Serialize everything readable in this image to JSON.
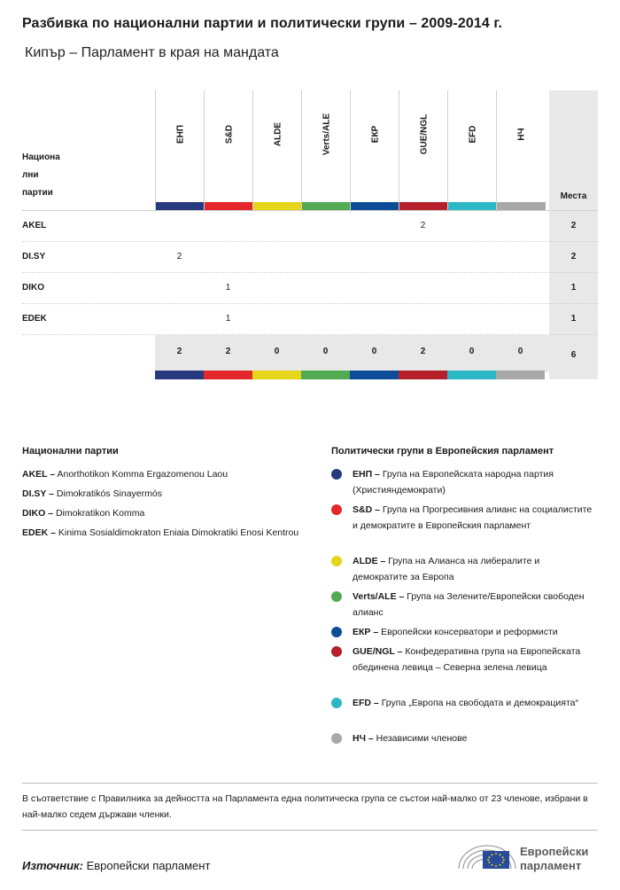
{
  "title": "Разбивка по национални партии и политически групи – 2009-2014 г.",
  "subtitle": "Кипър – Парламент в края на мандата",
  "table": {
    "row_header": [
      "Национа",
      "лни",
      "партии"
    ],
    "seats_header": "Места",
    "groups": [
      {
        "name": "ЕНП",
        "color": "#273a7f"
      },
      {
        "name": "S&D",
        "color": "#e3272b"
      },
      {
        "name": "ALDE",
        "color": "#e6d51a"
      },
      {
        "name": "Verts/ALE",
        "color": "#52ab53"
      },
      {
        "name": "ЕКР",
        "color": "#0d4d98"
      },
      {
        "name": "GUE/NGL",
        "color": "#b5202a"
      },
      {
        "name": "EFD",
        "color": "#2cb7c4"
      },
      {
        "name": "НЧ",
        "color": "#a8a8a8"
      }
    ],
    "rows": [
      {
        "party": "AKEL",
        "cells": [
          "",
          "",
          "",
          "",
          "",
          "2",
          "",
          ""
        ],
        "total": "2"
      },
      {
        "party": "DI.SY",
        "cells": [
          "2",
          "",
          "",
          "",
          "",
          "",
          "",
          ""
        ],
        "total": "2"
      },
      {
        "party": "DIKO",
        "cells": [
          "",
          "1",
          "",
          "",
          "",
          "",
          "",
          ""
        ],
        "total": "1"
      },
      {
        "party": "EDEK",
        "cells": [
          "",
          "1",
          "",
          "",
          "",
          "",
          "",
          ""
        ],
        "total": "1"
      }
    ],
    "totals": [
      "2",
      "2",
      "0",
      "0",
      "0",
      "2",
      "0",
      "0"
    ],
    "grand_total": "6"
  },
  "parties_legend": {
    "title": "Национални  партии",
    "items": [
      {
        "abbr": "AKEL –",
        "name": "Anorthotikon Komma Ergazomenou Laou"
      },
      {
        "abbr": "DI.SY –",
        "name": "Dimokratikós Sinayermós"
      },
      {
        "abbr": "DIKO –",
        "name": "Dimokratikon Komma"
      },
      {
        "abbr": "EDEK –",
        "name": "Kinima Sosialdimokraton Eniaia Dimokratiki Enosi Kentrou"
      }
    ]
  },
  "groups_legend": {
    "title": "Политически групи в Европейския парламент",
    "items": [
      {
        "abbr": "ЕНП –",
        "text": "Група на Европейската народна партия (Християндемократи)",
        "color": "#273a7f"
      },
      {
        "abbr": "S&D –",
        "text": "Група на Прогресивния алианс на социалистите и демократите в Европейския парламент",
        "color": "#e3272b"
      },
      {
        "abbr": "ALDE –",
        "text": "Група на Алианса на либералите и демократите за Европа",
        "color": "#e6d51a"
      },
      {
        "abbr": "Verts/ALE –",
        "text": "Група на Зелените/Европейски свободен алианс",
        "color": "#52ab53"
      },
      {
        "abbr": "ЕКР –",
        "text": "Европейски консерватори и реформисти",
        "color": "#0d4d98"
      },
      {
        "abbr": "GUE/NGL –",
        "text": "Конфедеративна група на Европейската обединена левица – Северна зелена левица",
        "color": "#b5202a"
      },
      {
        "abbr": "EFD –",
        "text": "Група „Европа на свободата и демокрацията“",
        "color": "#2cb7c4"
      },
      {
        "abbr": "НЧ –",
        "text": "Независими членове",
        "color": "#a8a8a8"
      }
    ]
  },
  "note": "В съответствие с Правилника за дейността на Парламента една политическа група се състои най-малко от 23 членове, избрани в най-малко седем държави членки.",
  "source": {
    "label": "Източник:",
    "value": "Европейски парламент"
  },
  "logo": {
    "line1": "Европейски",
    "line2": "парламент"
  }
}
